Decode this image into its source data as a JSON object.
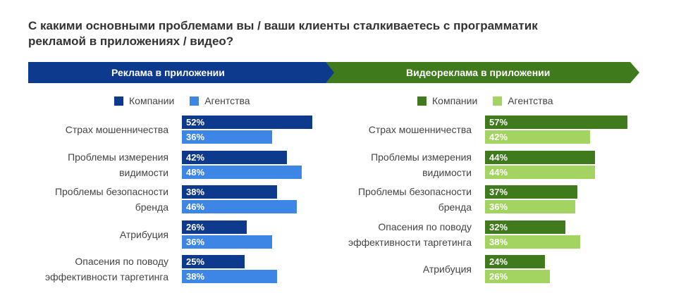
{
  "title": {
    "line1": "С какими основными проблемами вы / ваши клиенты сталкиваетесь с программатик",
    "line2": "рекламой в приложениях / видео?"
  },
  "chart_data": [
    {
      "type": "bar",
      "orientation": "horizontal",
      "title": "Реклама в приложении",
      "legend": [
        "Компании",
        "Агентства"
      ],
      "categories": [
        [
          "Страх мошенничества"
        ],
        [
          "Проблемы измерения",
          "видимости"
        ],
        [
          "Проблемы безопасности",
          "бренда"
        ],
        [
          "Атрибуция"
        ],
        [
          "Опасения по поводу",
          "эффективности таргетинга"
        ]
      ],
      "series": [
        {
          "name": "Компании",
          "values": [
            52,
            42,
            38,
            26,
            25
          ],
          "labels": [
            "52%",
            "42%",
            "38%",
            "26%",
            "25%"
          ],
          "color": "#0d3a8c"
        },
        {
          "name": "Агентства",
          "values": [
            36,
            48,
            46,
            36,
            38
          ],
          "labels": [
            "36%",
            "48%",
            "46%",
            "36%",
            "38%"
          ],
          "color": "#3e86e6"
        }
      ]
    },
    {
      "type": "bar",
      "orientation": "horizontal",
      "title": "Видеореклама в приложении",
      "legend": [
        "Компании",
        "Агентства"
      ],
      "categories": [
        [
          "Страх мошенничества"
        ],
        [
          "Проблемы измерения",
          "видимости"
        ],
        [
          "Проблемы безопасности",
          "бренда"
        ],
        [
          "Опасения по поводу",
          "эффективности таргетинга"
        ],
        [
          "Атрибуция"
        ]
      ],
      "series": [
        {
          "name": "Компании",
          "values": [
            57,
            44,
            37,
            32,
            24
          ],
          "labels": [
            "57%",
            "44%",
            "37%",
            "32%",
            "24%"
          ],
          "color": "#3f7a1c"
        },
        {
          "name": "Агентства",
          "values": [
            42,
            44,
            36,
            38,
            26
          ],
          "labels": [
            "42%",
            "44%",
            "36%",
            "38%",
            "26%"
          ],
          "color": "#a3d462"
        }
      ]
    }
  ],
  "colors": {
    "banner_left": "#0d3a8c",
    "banner_right": "#3f7a1c"
  }
}
